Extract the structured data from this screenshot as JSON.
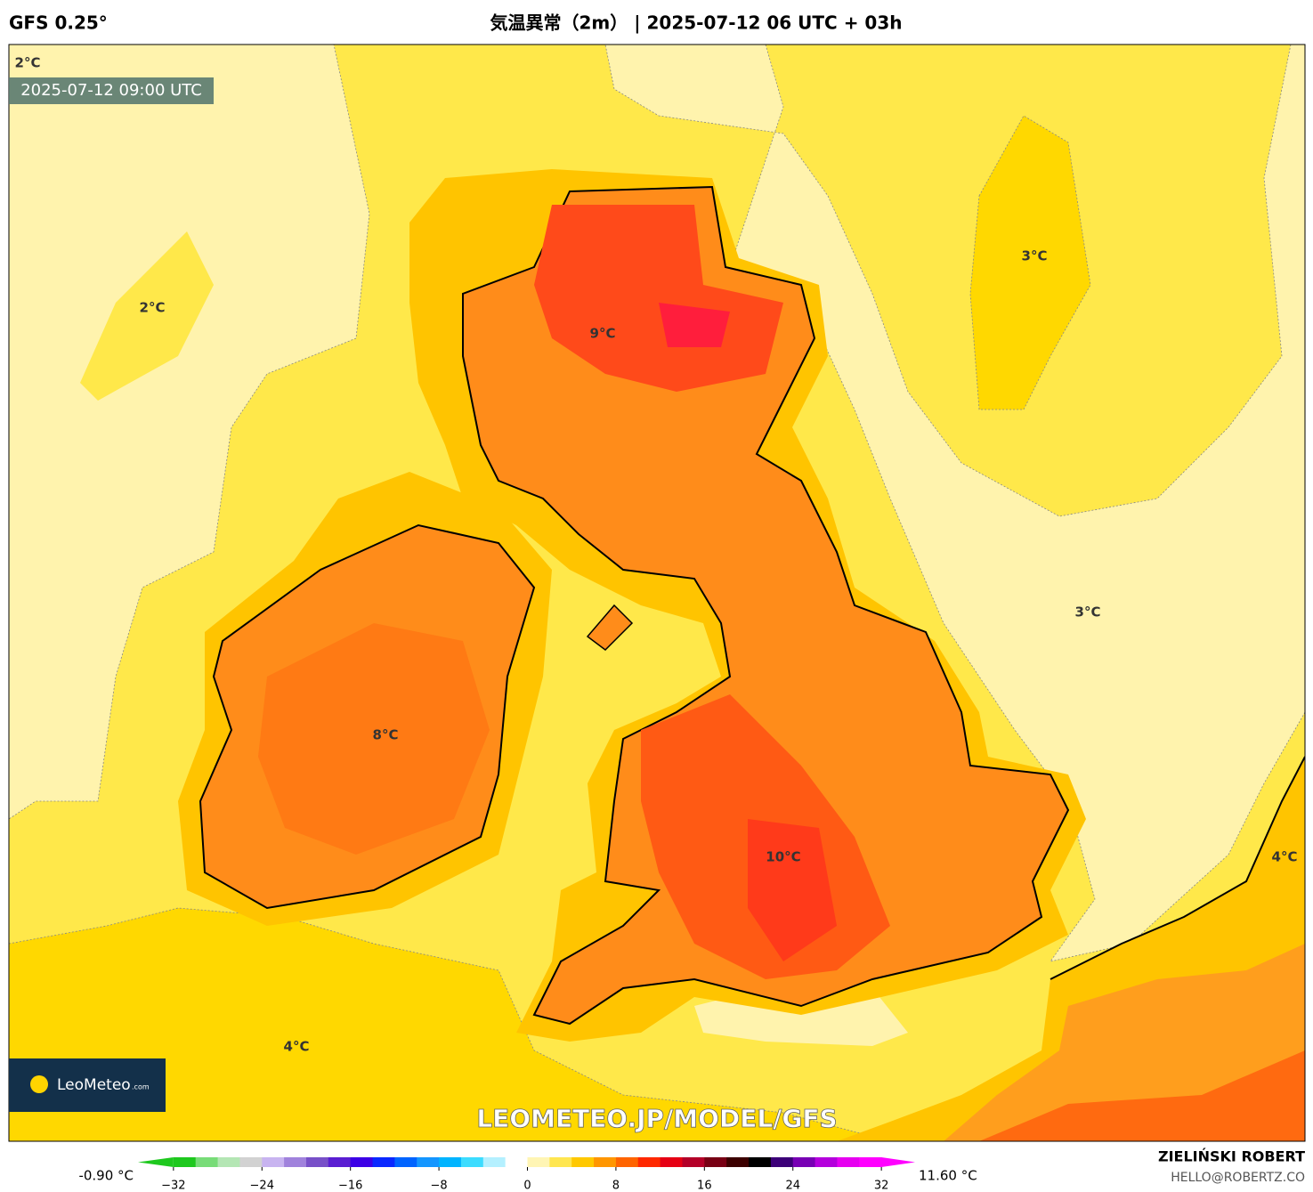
{
  "header": {
    "model": "GFS 0.25°",
    "title": "気温異常（2m） | 2025-07-12 06 UTC + 03h"
  },
  "map": {
    "valid_time": "2025-07-12 09:00 UTC",
    "contour_labels": [
      "2°C",
      "2°C",
      "3°C",
      "9°C",
      "3°C",
      "8°C",
      "10°C",
      "4°C",
      "4°C"
    ],
    "logo": "LeoMeteo",
    "logo_suffix": ".com",
    "watermark": "LEOMETEO.JP/MODEL/GFS"
  },
  "colorbar": {
    "min_label": "-0.90 °C",
    "max_label": "11.60 °C",
    "lim": [
      -34,
      34
    ],
    "ticks": [
      {
        "value": -32,
        "label": "−32"
      },
      {
        "value": -24,
        "label": "−24"
      },
      {
        "value": -16,
        "label": "−16"
      },
      {
        "value": -8,
        "label": "−8"
      },
      0,
      8,
      16,
      24,
      32
    ],
    "colors": [
      "#1ec81e",
      "#78dc78",
      "#b4e6b4",
      "#d2d2d2",
      "#c8b4f0",
      "#a082dc",
      "#7850c8",
      "#5a1ed2",
      "#3c00e6",
      "#0a28ff",
      "#0064ff",
      "#1496ff",
      "#00b4ff",
      "#3cdcff",
      "#b4f0ff",
      "#ffffff",
      "#fff5b4",
      "#ffe650",
      "#ffc800",
      "#ff9600",
      "#ff6400",
      "#ff2800",
      "#e60014",
      "#b40028",
      "#780014",
      "#3c0000",
      "#000000",
      "#3c0078",
      "#7800b4",
      "#b400dc",
      "#e600f0",
      "#ff00ff"
    ]
  },
  "footer": {
    "author": "ZIELIŃSKI ROBERT",
    "email": "HELLO@ROBERTZ.CO"
  }
}
